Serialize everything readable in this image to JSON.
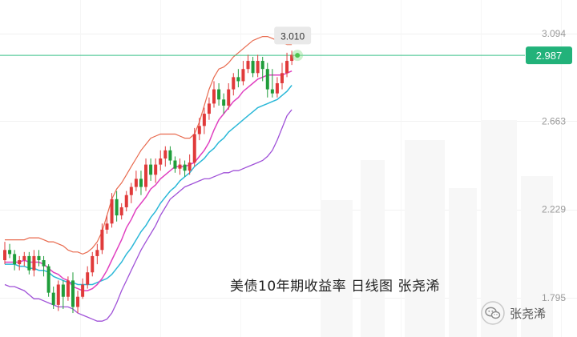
{
  "chart_data": {
    "type": "candlestick",
    "y_ticks": [
      "3.094",
      "2.663",
      "2.229",
      "1.795"
    ],
    "ylim": [
      1.68,
      3.18
    ],
    "current_price": {
      "value": 2.987,
      "label": "2.987"
    },
    "high_marker": {
      "value": 3.01,
      "label": "3.010"
    },
    "colors": {
      "up": "#e03a3a",
      "down": "#1f9d3a",
      "bb_upper": "#e86a4e",
      "bb_lower": "#a052d8",
      "ma_fast": "#e040c0",
      "ma_slow": "#2bb8d8",
      "current_line": "#3cc08a",
      "price_tag": "#22b27a"
    },
    "candles": [
      [
        1.98,
        2.03,
        2.07,
        1.96
      ],
      [
        2.03,
        2.01,
        2.06,
        1.99
      ],
      [
        2.01,
        1.96,
        2.03,
        1.93
      ],
      [
        1.96,
        1.98,
        2.0,
        1.93
      ],
      [
        1.98,
        2.0,
        2.02,
        1.95
      ],
      [
        2.0,
        1.93,
        2.02,
        1.91
      ],
      [
        1.93,
        2.0,
        2.03,
        1.9
      ],
      [
        2.0,
        1.98,
        2.03,
        1.95
      ],
      [
        1.98,
        1.95,
        2.0,
        1.9
      ],
      [
        1.95,
        1.82,
        1.96,
        1.8
      ],
      [
        1.82,
        1.76,
        1.85,
        1.74
      ],
      [
        1.76,
        1.86,
        1.88,
        1.73
      ],
      [
        1.86,
        1.8,
        1.88,
        1.74
      ],
      [
        1.8,
        1.88,
        1.9,
        1.78
      ],
      [
        1.88,
        1.75,
        1.92,
        1.72
      ],
      [
        1.75,
        1.8,
        1.83,
        1.72
      ],
      [
        1.8,
        1.86,
        1.89,
        1.79
      ],
      [
        1.86,
        1.92,
        1.95,
        1.84
      ],
      [
        1.92,
        2.0,
        2.02,
        1.9
      ],
      [
        2.0,
        2.03,
        2.06,
        1.96
      ],
      [
        2.03,
        2.13,
        2.16,
        2.01
      ],
      [
        2.13,
        2.16,
        2.2,
        2.11
      ],
      [
        2.16,
        2.28,
        2.31,
        2.14
      ],
      [
        2.28,
        2.2,
        2.32,
        2.17
      ],
      [
        2.2,
        2.24,
        2.26,
        2.18
      ],
      [
        2.24,
        2.3,
        2.32,
        2.22
      ],
      [
        2.3,
        2.34,
        2.36,
        2.26
      ],
      [
        2.34,
        2.38,
        2.42,
        2.32
      ],
      [
        2.38,
        2.34,
        2.42,
        2.3
      ],
      [
        2.34,
        2.45,
        2.48,
        2.32
      ],
      [
        2.45,
        2.4,
        2.48,
        2.37
      ],
      [
        2.4,
        2.45,
        2.48,
        2.36
      ],
      [
        2.45,
        2.48,
        2.52,
        2.42
      ],
      [
        2.48,
        2.52,
        2.54,
        2.44
      ],
      [
        2.52,
        2.47,
        2.54,
        2.45
      ],
      [
        2.47,
        2.43,
        2.49,
        2.41
      ],
      [
        2.43,
        2.45,
        2.48,
        2.4
      ],
      [
        2.45,
        2.42,
        2.47,
        2.39
      ],
      [
        2.42,
        2.46,
        2.5,
        2.4
      ],
      [
        2.46,
        2.6,
        2.63,
        2.44
      ],
      [
        2.6,
        2.64,
        2.68,
        2.57
      ],
      [
        2.64,
        2.7,
        2.73,
        2.6
      ],
      [
        2.7,
        2.75,
        2.78,
        2.67
      ],
      [
        2.75,
        2.82,
        2.86,
        2.73
      ],
      [
        2.82,
        2.77,
        2.85,
        2.74
      ],
      [
        2.77,
        2.74,
        2.8,
        2.7
      ],
      [
        2.74,
        2.82,
        2.85,
        2.72
      ],
      [
        2.82,
        2.88,
        2.9,
        2.79
      ],
      [
        2.88,
        2.86,
        2.92,
        2.83
      ],
      [
        2.86,
        2.92,
        2.96,
        2.84
      ],
      [
        2.92,
        2.96,
        2.99,
        2.9
      ],
      [
        2.96,
        2.9,
        2.98,
        2.88
      ],
      [
        2.9,
        2.96,
        2.99,
        2.88
      ],
      [
        2.96,
        2.92,
        2.98,
        2.86
      ],
      [
        2.92,
        2.82,
        2.95,
        2.78
      ],
      [
        2.82,
        2.8,
        2.92,
        2.78
      ],
      [
        2.8,
        2.85,
        2.88,
        2.78
      ],
      [
        2.85,
        2.9,
        2.95,
        2.82
      ],
      [
        2.9,
        2.96,
        3.0,
        2.88
      ],
      [
        2.96,
        2.99,
        3.01,
        2.94
      ]
    ],
    "bb_upper": [
      2.08,
      2.08,
      2.08,
      2.08,
      2.08,
      2.09,
      2.09,
      2.09,
      2.08,
      2.07,
      2.07,
      2.06,
      2.05,
      2.03,
      2.02,
      2.02,
      2.01,
      2.02,
      2.04,
      2.07,
      2.12,
      2.2,
      2.28,
      2.33,
      2.36,
      2.4,
      2.44,
      2.48,
      2.52,
      2.55,
      2.58,
      2.59,
      2.6,
      2.6,
      2.6,
      2.6,
      2.59,
      2.58,
      2.58,
      2.6,
      2.66,
      2.74,
      2.82,
      2.88,
      2.92,
      2.93,
      2.95,
      2.98,
      3.0,
      3.02,
      3.04,
      3.06,
      3.07,
      3.08,
      3.08,
      3.07,
      3.06,
      3.05,
      3.04,
      3.04
    ],
    "bb_lower": [
      1.86,
      1.85,
      1.85,
      1.84,
      1.83,
      1.81,
      1.79,
      1.79,
      1.78,
      1.77,
      1.76,
      1.75,
      1.75,
      1.75,
      1.74,
      1.72,
      1.71,
      1.7,
      1.69,
      1.68,
      1.68,
      1.69,
      1.72,
      1.77,
      1.83,
      1.88,
      1.93,
      1.98,
      2.03,
      2.07,
      2.11,
      2.15,
      2.2,
      2.24,
      2.28,
      2.3,
      2.32,
      2.34,
      2.35,
      2.36,
      2.37,
      2.38,
      2.38,
      2.39,
      2.4,
      2.41,
      2.41,
      2.42,
      2.42,
      2.43,
      2.44,
      2.45,
      2.46,
      2.47,
      2.49,
      2.52,
      2.57,
      2.63,
      2.69,
      2.72
    ],
    "ma_fast": [
      1.97,
      1.97,
      1.97,
      1.97,
      1.98,
      1.97,
      1.97,
      1.97,
      1.96,
      1.94,
      1.92,
      1.91,
      1.89,
      1.88,
      1.85,
      1.84,
      1.83,
      1.83,
      1.84,
      1.86,
      1.89,
      1.93,
      1.98,
      2.03,
      2.08,
      2.14,
      2.18,
      2.23,
      2.26,
      2.29,
      2.33,
      2.35,
      2.38,
      2.4,
      2.42,
      2.44,
      2.44,
      2.44,
      2.45,
      2.46,
      2.49,
      2.52,
      2.56,
      2.62,
      2.67,
      2.7,
      2.73,
      2.76,
      2.78,
      2.81,
      2.83,
      2.85,
      2.87,
      2.88,
      2.89,
      2.89,
      2.89,
      2.89,
      2.9,
      2.91
    ],
    "ma_slow": [
      1.96,
      1.96,
      1.96,
      1.95,
      1.95,
      1.94,
      1.94,
      1.93,
      1.93,
      1.92,
      1.9,
      1.89,
      1.88,
      1.87,
      1.87,
      1.86,
      1.86,
      1.86,
      1.86,
      1.87,
      1.88,
      1.89,
      1.91,
      1.94,
      1.97,
      2.01,
      2.04,
      2.08,
      2.12,
      2.15,
      2.19,
      2.22,
      2.26,
      2.29,
      2.32,
      2.34,
      2.37,
      2.39,
      2.41,
      2.44,
      2.46,
      2.48,
      2.51,
      2.53,
      2.56,
      2.58,
      2.61,
      2.63,
      2.65,
      2.67,
      2.69,
      2.71,
      2.73,
      2.74,
      2.75,
      2.76,
      2.77,
      2.79,
      2.81,
      2.84
    ]
  },
  "caption": "美债10年期收益率  日线图  张尧浠",
  "watermark": {
    "label": "张尧浠",
    "icon": "wechat-icon"
  }
}
